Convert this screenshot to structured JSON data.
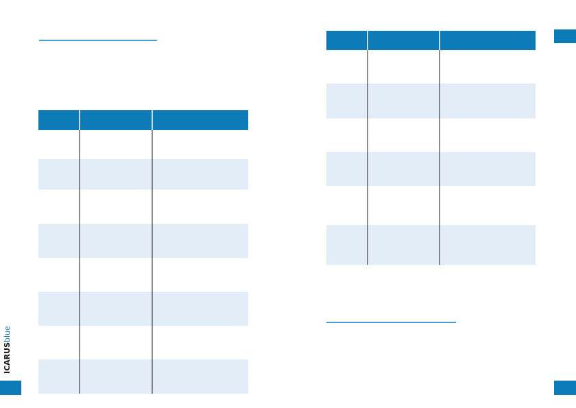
{
  "logo": {
    "brand": "ICARUS",
    "suffix": "blue"
  }
}
